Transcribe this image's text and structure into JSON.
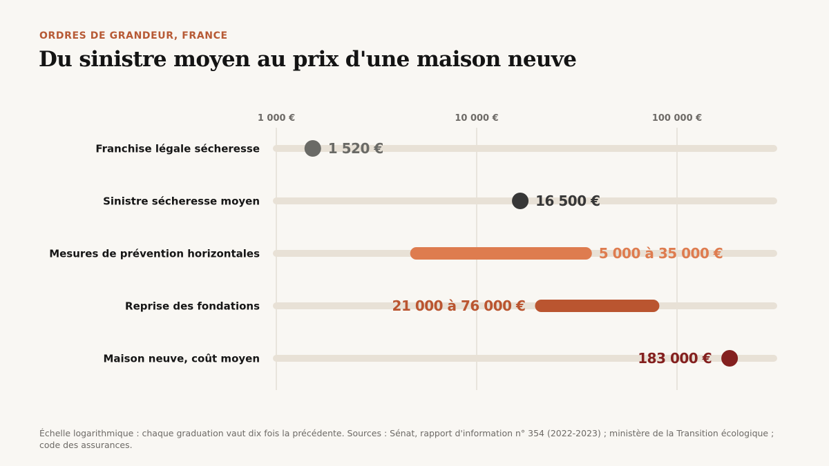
{
  "header": {
    "eyebrow": "ORDRES DE GRANDEUR, FRANCE",
    "title": "Du sinistre moyen au prix d'une maison neuve"
  },
  "footnote": "Échelle logarithmique : chaque graduation vaut dix fois la précédente. Sources : Sénat, rapport d'information n° 354 (2022-2023) ; ministère de la Transition écologique ; code des assurances.",
  "colors": {
    "track": "#e8e1d6",
    "grid": "#dcd7cd",
    "tick_label": "#6d6a66",
    "row_label": "#161616"
  },
  "chart_data": {
    "type": "range_dot",
    "scale": "log",
    "xlim": [
      1000,
      250000
    ],
    "ticks": [
      {
        "value": 1000,
        "label": "1 000 €"
      },
      {
        "value": 10000,
        "label": "10 000 €"
      },
      {
        "value": 100000,
        "label": "100 000 €"
      }
    ],
    "rows": [
      {
        "label": "Franchise légale sécheresse",
        "kind": "point",
        "value": 1520,
        "value_label": "1 520 €",
        "color": "#6a6a66",
        "label_side": "right"
      },
      {
        "label": "Sinistre sécheresse moyen",
        "kind": "point",
        "value": 16500,
        "value_label": "16 500 €",
        "color": "#373737",
        "label_side": "right"
      },
      {
        "label": "Mesures de prévention horizontales",
        "kind": "range",
        "min": 5000,
        "max": 35000,
        "value_label": "5 000 à 35 000 €",
        "color": "#de7c4f",
        "label_side": "right"
      },
      {
        "label": "Reprise des fondations",
        "kind": "range",
        "min": 21000,
        "max": 76000,
        "value_label": "21 000 à 76 000 €",
        "color": "#ba5530",
        "label_side": "left"
      },
      {
        "label": "Maison neuve, coût moyen",
        "kind": "point",
        "value": 183000,
        "value_label": "183 000 €",
        "color": "#84201f",
        "label_side": "left"
      }
    ]
  }
}
